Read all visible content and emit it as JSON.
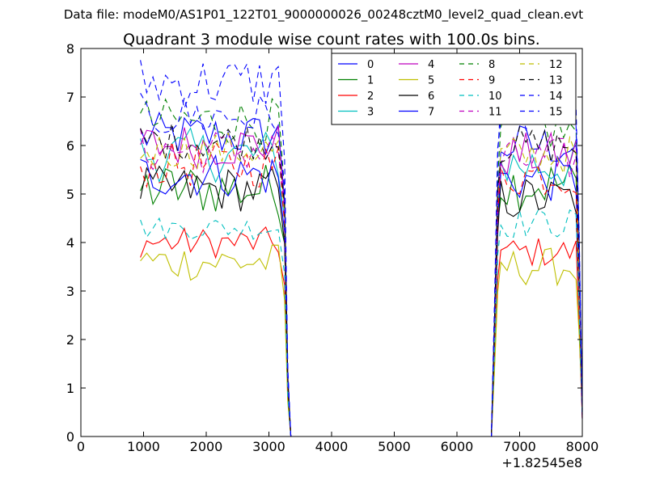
{
  "figure": {
    "suptitle": "Data file: modeM0/AS1P01_122T01_9000000026_00248cztM0_level2_quad_clean.evt"
  },
  "chart_data": {
    "type": "line",
    "title": "Quadrant 3 module wise count rates with 100.0s bins.",
    "xlabel": "",
    "ylabel": "",
    "xlim": [
      0,
      8000
    ],
    "ylim": [
      0,
      8
    ],
    "x_ticks": [
      0,
      1000,
      2000,
      3000,
      4000,
      5000,
      6000,
      7000,
      8000
    ],
    "x_tick_labels": [
      "0",
      "1000",
      "2000",
      "3000",
      "4000",
      "5000",
      "6000",
      "7000",
      "8000"
    ],
    "y_ticks": [
      0,
      1,
      2,
      3,
      4,
      5,
      6,
      7,
      8
    ],
    "y_tick_labels": [
      "0",
      "1",
      "2",
      "3",
      "4",
      "5",
      "6",
      "7",
      "8"
    ],
    "x_offset_label": "+1.82545e8",
    "grid": false,
    "legend_position": "top-right",
    "legend_columns": 4,
    "segment1_x_start": 950,
    "segment2_x_start": 6650,
    "series": [
      {
        "name": "0",
        "color": "#0000ff",
        "dash": "solid",
        "mean1": 6.2,
        "amp1": 0.3,
        "mean2": 6.0,
        "amp2": 0.3
      },
      {
        "name": "1",
        "color": "#008000",
        "dash": "solid",
        "mean1": 5.1,
        "amp1": 0.35,
        "mean2": 5.2,
        "amp2": 0.35
      },
      {
        "name": "2",
        "color": "#ff0000",
        "dash": "solid",
        "mean1": 4.0,
        "amp1": 0.2,
        "mean2": 3.8,
        "amp2": 0.2
      },
      {
        "name": "3",
        "color": "#00bfbf",
        "dash": "solid",
        "mean1": 5.8,
        "amp1": 0.35,
        "mean2": 5.6,
        "amp2": 0.35
      },
      {
        "name": "4",
        "color": "#bf00bf",
        "dash": "solid",
        "mean1": 6.0,
        "amp1": 0.3,
        "mean2": 5.8,
        "amp2": 0.3
      },
      {
        "name": "5",
        "color": "#bfbf00",
        "dash": "solid",
        "mean1": 3.6,
        "amp1": 0.25,
        "mean2": 3.5,
        "amp2": 0.25
      },
      {
        "name": "6",
        "color": "#000000",
        "dash": "solid",
        "mean1": 5.1,
        "amp1": 0.3,
        "mean2": 4.9,
        "amp2": 0.3
      },
      {
        "name": "7",
        "color": "#0000ff",
        "dash": "solid",
        "mean1": 5.4,
        "amp1": 0.3,
        "mean2": 5.3,
        "amp2": 0.3
      },
      {
        "name": "8",
        "color": "#008000",
        "dash": "dashed",
        "mean1": 6.5,
        "amp1": 0.3,
        "mean2": 6.3,
        "amp2": 0.3
      },
      {
        "name": "9",
        "color": "#ff0000",
        "dash": "dashed",
        "mean1": 5.6,
        "amp1": 0.3,
        "mean2": 5.4,
        "amp2": 0.3
      },
      {
        "name": "10",
        "color": "#00bfbf",
        "dash": "dashed",
        "mean1": 4.3,
        "amp1": 0.15,
        "mean2": 4.4,
        "amp2": 0.2
      },
      {
        "name": "11",
        "color": "#bf00bf",
        "dash": "dashed",
        "mean1": 5.9,
        "amp1": 0.3,
        "mean2": 5.7,
        "amp2": 0.3
      },
      {
        "name": "12",
        "color": "#bfbf00",
        "dash": "dashed",
        "mean1": 5.9,
        "amp1": 0.25,
        "mean2": 5.8,
        "amp2": 0.25
      },
      {
        "name": "13",
        "color": "#000000",
        "dash": "dashed",
        "mean1": 6.1,
        "amp1": 0.25,
        "mean2": 6.0,
        "amp2": 0.25
      },
      {
        "name": "14",
        "color": "#0000ff",
        "dash": "dashed",
        "mean1": 7.3,
        "amp1": 0.35,
        "mean2": 7.0,
        "amp2": 0.4
      },
      {
        "name": "15",
        "color": "#0000ff",
        "dash": "dashed",
        "mean1": 6.6,
        "amp1": 0.3,
        "mean2": 6.8,
        "amp2": 0.3
      }
    ]
  }
}
